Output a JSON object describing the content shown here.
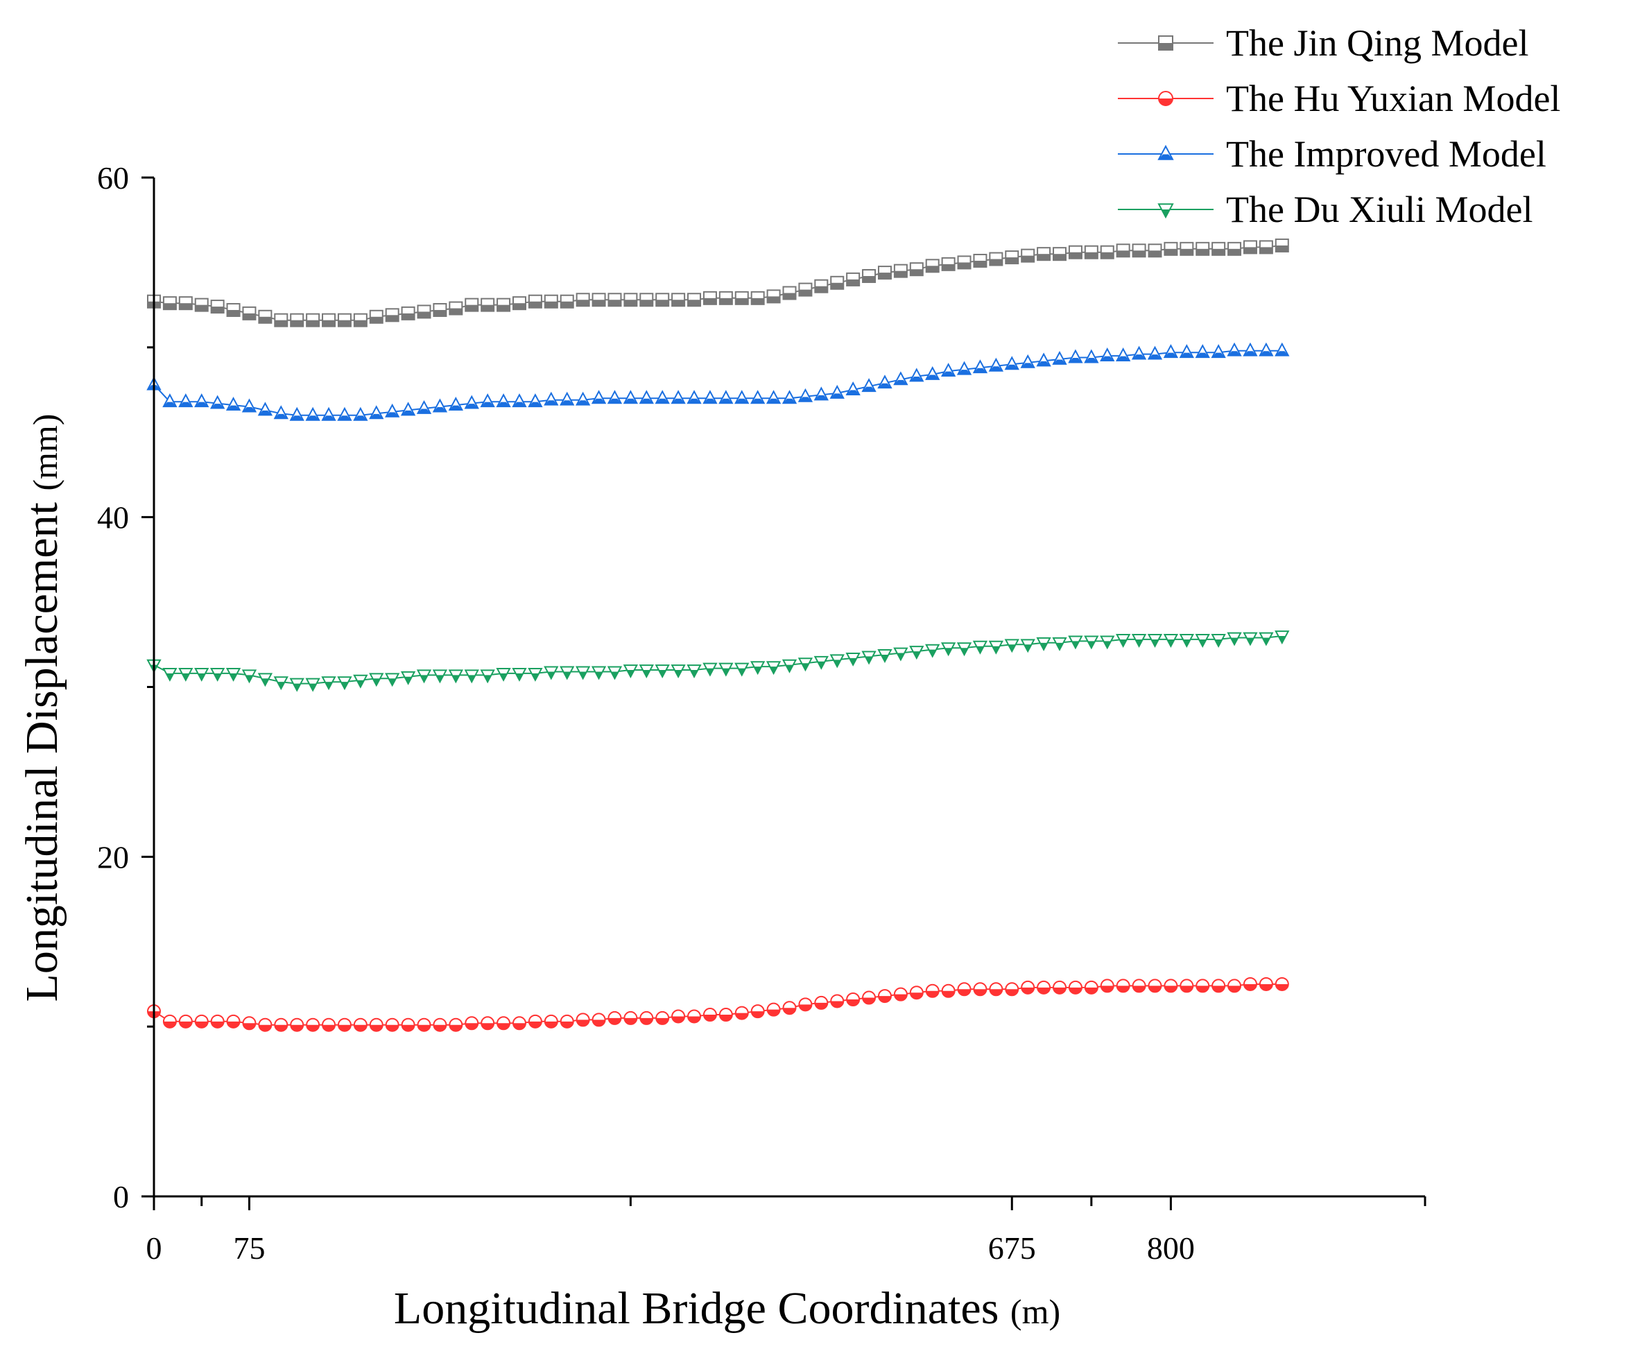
{
  "chart_data": {
    "type": "line",
    "title": "",
    "xlabel": "Longitudinal Bridge Coordinates",
    "xlabel_unit": "(m)",
    "ylabel": "Longitudinal Displacement",
    "ylabel_unit": "(mm)",
    "xlim": [
      0,
      1000
    ],
    "ylim": [
      0,
      60
    ],
    "x_ticks": [
      0,
      75,
      675,
      800
    ],
    "y_ticks": [
      0,
      20,
      40,
      60
    ],
    "legend_position": "top-right",
    "x": [
      0,
      12.5,
      25,
      37.5,
      50,
      62.5,
      75,
      87.5,
      100,
      112.5,
      125,
      137.5,
      150,
      162.5,
      175,
      187.5,
      200,
      212.5,
      225,
      237.5,
      250,
      262.5,
      275,
      287.5,
      300,
      312.5,
      325,
      337.5,
      350,
      362.5,
      375,
      387.5,
      400,
      412.5,
      425,
      437.5,
      450,
      462.5,
      475,
      487.5,
      500,
      512.5,
      525,
      537.5,
      550,
      562.5,
      575,
      587.5,
      600,
      612.5,
      625,
      637.5,
      650,
      662.5,
      675,
      687.5,
      700,
      712.5,
      725,
      737.5,
      750,
      762.5,
      775,
      787.5,
      800,
      812.5,
      825,
      837.5,
      850,
      862.5,
      875,
      887.5
    ],
    "series": [
      {
        "name": "The Jin Qing Model",
        "color": "#777777",
        "marker": "square",
        "values": [
          52.7,
          52.6,
          52.6,
          52.5,
          52.4,
          52.2,
          52.0,
          51.8,
          51.6,
          51.6,
          51.6,
          51.6,
          51.6,
          51.6,
          51.8,
          51.9,
          52.0,
          52.1,
          52.2,
          52.3,
          52.5,
          52.5,
          52.5,
          52.6,
          52.7,
          52.7,
          52.7,
          52.8,
          52.8,
          52.8,
          52.8,
          52.8,
          52.8,
          52.8,
          52.8,
          52.9,
          52.9,
          52.9,
          52.9,
          53.0,
          53.2,
          53.4,
          53.6,
          53.8,
          54.0,
          54.2,
          54.4,
          54.5,
          54.6,
          54.8,
          54.9,
          55.0,
          55.1,
          55.2,
          55.3,
          55.4,
          55.5,
          55.5,
          55.6,
          55.6,
          55.6,
          55.7,
          55.7,
          55.7,
          55.8,
          55.8,
          55.8,
          55.8,
          55.8,
          55.9,
          55.9,
          56.0
        ]
      },
      {
        "name": "The Hu Yuxian Model",
        "color": "#ff3333",
        "marker": "circle",
        "values": [
          10.9,
          10.3,
          10.3,
          10.3,
          10.3,
          10.3,
          10.2,
          10.1,
          10.1,
          10.1,
          10.1,
          10.1,
          10.1,
          10.1,
          10.1,
          10.1,
          10.1,
          10.1,
          10.1,
          10.1,
          10.2,
          10.2,
          10.2,
          10.2,
          10.3,
          10.3,
          10.3,
          10.4,
          10.4,
          10.5,
          10.5,
          10.5,
          10.5,
          10.6,
          10.6,
          10.7,
          10.7,
          10.8,
          10.9,
          11.0,
          11.1,
          11.3,
          11.4,
          11.5,
          11.6,
          11.7,
          11.8,
          11.9,
          12.0,
          12.1,
          12.1,
          12.2,
          12.2,
          12.2,
          12.2,
          12.3,
          12.3,
          12.3,
          12.3,
          12.3,
          12.4,
          12.4,
          12.4,
          12.4,
          12.4,
          12.4,
          12.4,
          12.4,
          12.4,
          12.5,
          12.5,
          12.5
        ]
      },
      {
        "name": "The Improved Model",
        "color": "#1a6fe0",
        "marker": "triangle-up",
        "values": [
          47.8,
          46.8,
          46.8,
          46.8,
          46.7,
          46.6,
          46.5,
          46.3,
          46.1,
          46.0,
          46.0,
          46.0,
          46.0,
          46.0,
          46.1,
          46.2,
          46.3,
          46.4,
          46.5,
          46.6,
          46.7,
          46.8,
          46.8,
          46.8,
          46.8,
          46.9,
          46.9,
          46.9,
          47.0,
          47.0,
          47.0,
          47.0,
          47.0,
          47.0,
          47.0,
          47.0,
          47.0,
          47.0,
          47.0,
          47.0,
          47.0,
          47.1,
          47.2,
          47.3,
          47.5,
          47.7,
          47.9,
          48.1,
          48.3,
          48.4,
          48.6,
          48.7,
          48.8,
          48.9,
          49.0,
          49.1,
          49.2,
          49.3,
          49.4,
          49.4,
          49.5,
          49.5,
          49.6,
          49.6,
          49.7,
          49.7,
          49.7,
          49.7,
          49.8,
          49.8,
          49.8,
          49.8
        ]
      },
      {
        "name": "The Du Xiuli Model",
        "color": "#1aa060",
        "marker": "triangle-down",
        "values": [
          31.3,
          30.8,
          30.8,
          30.8,
          30.8,
          30.8,
          30.7,
          30.5,
          30.3,
          30.2,
          30.2,
          30.3,
          30.3,
          30.4,
          30.5,
          30.5,
          30.6,
          30.7,
          30.7,
          30.7,
          30.7,
          30.7,
          30.8,
          30.8,
          30.8,
          30.9,
          30.9,
          30.9,
          30.9,
          30.9,
          31.0,
          31.0,
          31.0,
          31.0,
          31.0,
          31.1,
          31.1,
          31.1,
          31.2,
          31.2,
          31.3,
          31.4,
          31.5,
          31.6,
          31.7,
          31.8,
          31.9,
          32.0,
          32.1,
          32.2,
          32.3,
          32.3,
          32.4,
          32.4,
          32.5,
          32.5,
          32.6,
          32.6,
          32.7,
          32.7,
          32.7,
          32.8,
          32.8,
          32.8,
          32.8,
          32.8,
          32.8,
          32.8,
          32.9,
          32.9,
          32.9,
          33.0
        ]
      }
    ]
  }
}
